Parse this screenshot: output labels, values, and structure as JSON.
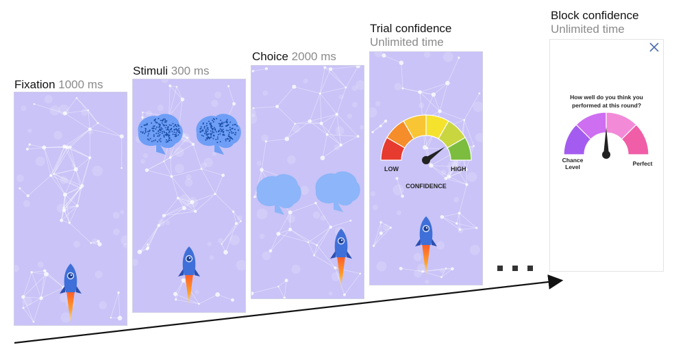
{
  "steps": [
    {
      "name": "Fixation",
      "duration": "1000 ms"
    },
    {
      "name": "Stimuli",
      "duration": "300 ms"
    },
    {
      "name": "Choice",
      "duration": "2000 ms"
    },
    {
      "name": "Trial confidence",
      "duration": "Unlimited time"
    },
    {
      "name": "Block confidence",
      "duration": "Unlimited time"
    }
  ],
  "trial_gauge": {
    "low": "LOW",
    "high": "HIGH",
    "caption": "CONFIDENCE",
    "colors": [
      "#e63b2e",
      "#f58d2a",
      "#f8c534",
      "#f5e22d",
      "#c9d640",
      "#7cbd3f"
    ]
  },
  "block_gauge": {
    "question": "How well do you think you performed at this round?",
    "left_label": "Chance Level",
    "right_label": "Perfect",
    "colors": [
      "#a45cf0",
      "#cd6ff0",
      "#f28ad8",
      "#ef5ea7"
    ]
  },
  "colors": {
    "panel_bg": "#c9c3f7",
    "brain_stimulus": "#1a4fa8",
    "brain_choice": "#8db5f9",
    "rocket": "#3f6fd8"
  },
  "icons": [
    "rocket-icon",
    "brain-icon",
    "close-icon",
    "gauge-icon",
    "timeline-arrow"
  ]
}
